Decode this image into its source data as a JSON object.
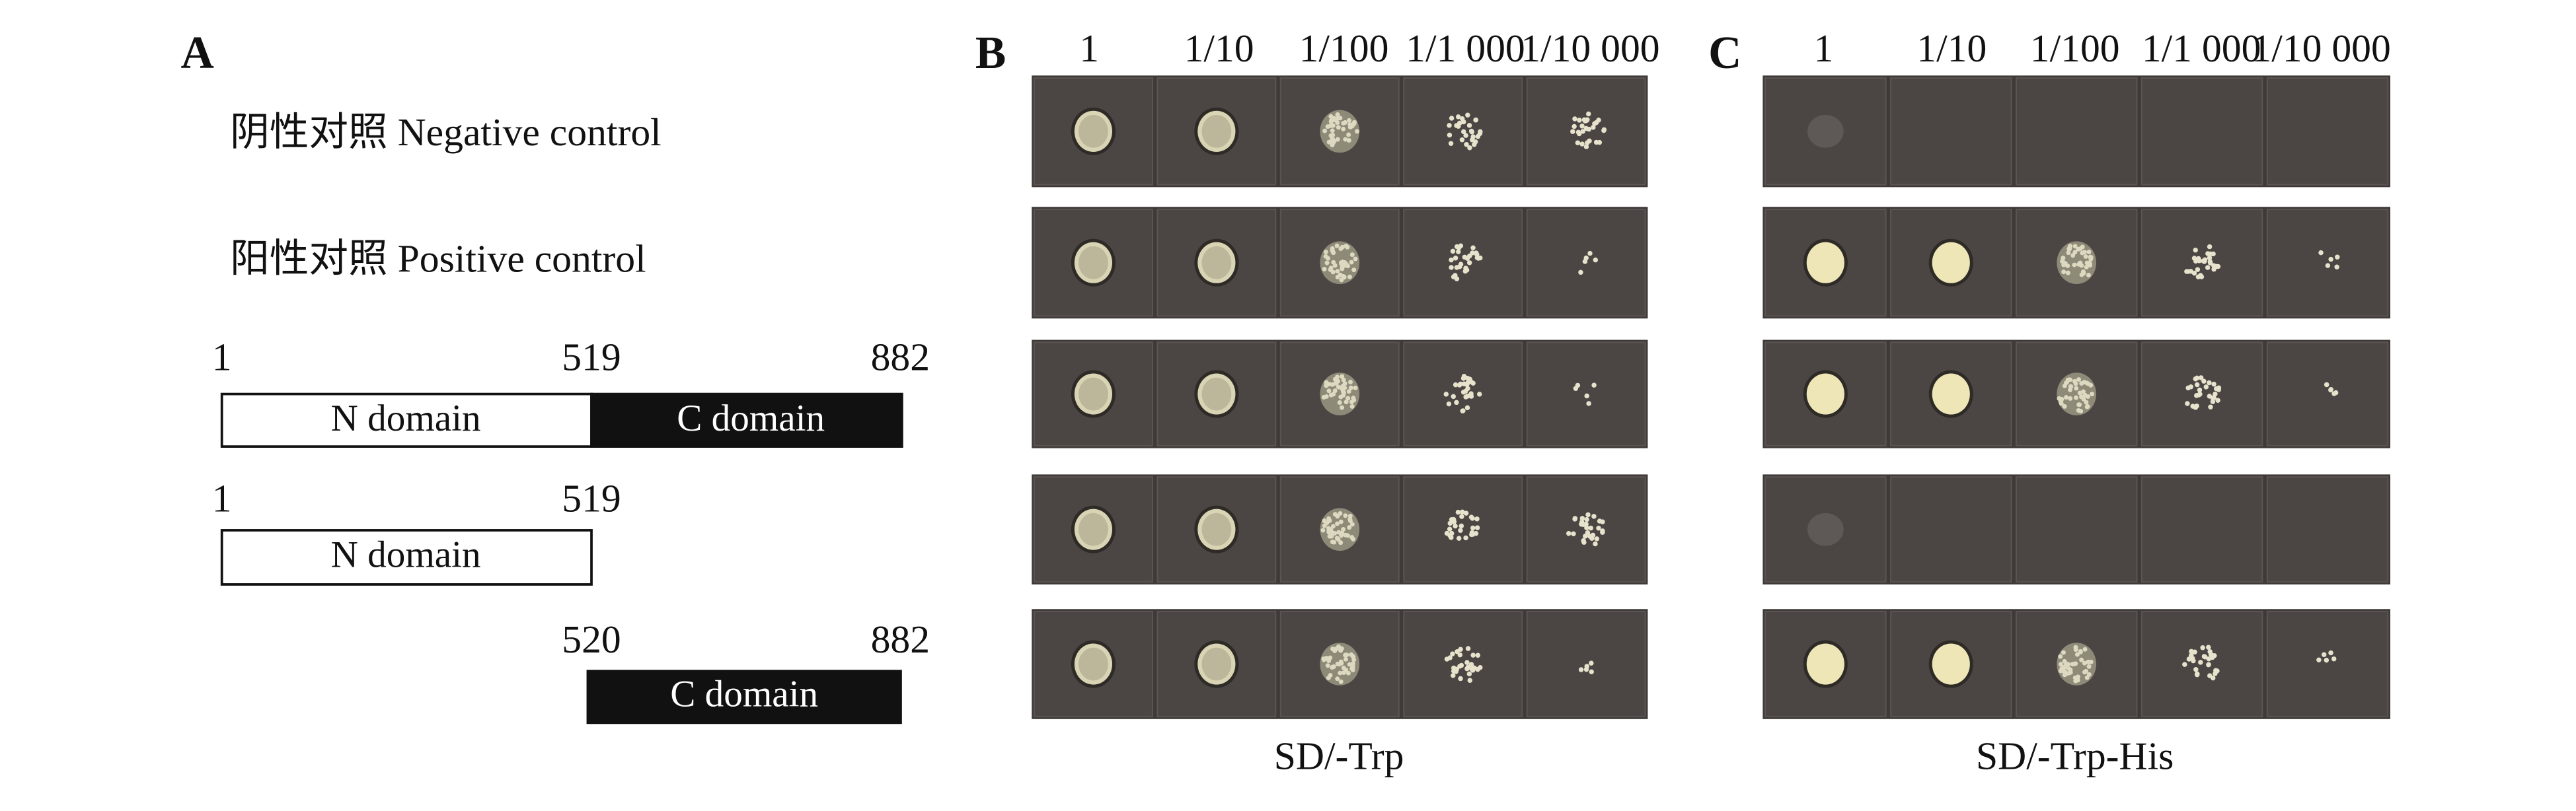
{
  "panel_a": {
    "label": "A",
    "controls": [
      "阴性对照 Negative control",
      "阳性对照 Positive control"
    ],
    "constructs": [
      {
        "start": "1",
        "split": "519",
        "end": "882",
        "n_label": "N domain",
        "c_label": "C domain"
      },
      {
        "start": "1",
        "split": "519",
        "n_label": "N domain"
      },
      {
        "split": "520",
        "end": "882",
        "c_label": "C domain"
      }
    ]
  },
  "panels": [
    {
      "label": "B",
      "dilutions": [
        "1",
        "1/10",
        "1/100",
        "1/1 000",
        "1/10 000"
      ],
      "medium": "SD/-Trp"
    },
    {
      "label": "C",
      "dilutions": [
        "1",
        "1/10",
        "1/100",
        "1/1 000",
        "1/10 000"
      ],
      "medium": "SD/-Trp-His"
    }
  ]
}
